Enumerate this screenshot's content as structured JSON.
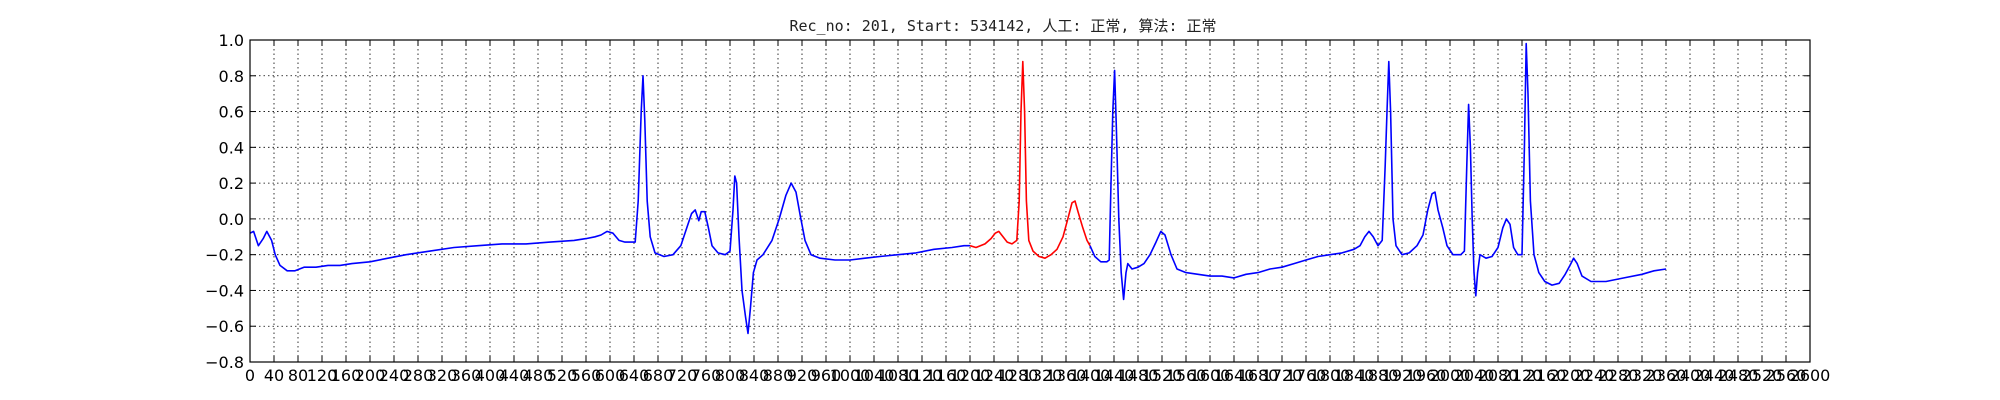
{
  "chart_data": {
    "type": "line",
    "title": "Rec_no: 201, Start: 534142, 人工: 正常, 算法: 正常",
    "xlabel": "",
    "ylabel": "",
    "xlim": [
      0,
      2600
    ],
    "ylim": [
      -0.8,
      1.0
    ],
    "grid": true,
    "x_ticks": [
      0,
      40,
      80,
      120,
      160,
      200,
      240,
      280,
      320,
      360,
      400,
      440,
      480,
      520,
      560,
      600,
      640,
      680,
      720,
      760,
      800,
      840,
      880,
      920,
      960,
      1000,
      1040,
      1080,
      1120,
      1160,
      1200,
      1240,
      1280,
      1320,
      1360,
      1400,
      1440,
      1480,
      1520,
      1560,
      1600,
      1640,
      1680,
      1720,
      1760,
      1800,
      1840,
      1880,
      1920,
      1960,
      2000,
      2040,
      2080,
      2120,
      2160,
      2200,
      2240,
      2280,
      2320,
      2360,
      2400,
      2440,
      2480,
      2520,
      2560,
      2600
    ],
    "x_tick_labels": [
      "0",
      "40",
      "80",
      "120",
      "160",
      "200",
      "240",
      "280",
      "320",
      "360",
      "400",
      "440",
      "480",
      "520",
      "560",
      "600",
      "640",
      "680",
      "720",
      "760",
      "800",
      "840",
      "880",
      "920",
      "960",
      "1000",
      "1040",
      "1080",
      "1120",
      "1160",
      "1200",
      "1240",
      "1280",
      "1320",
      "1360",
      "1400",
      "1440",
      "1480",
      "1520",
      "1560",
      "1600",
      "1640",
      "1680",
      "1720",
      "1760",
      "1800",
      "1840",
      "1880",
      "1920",
      "1960",
      "2000",
      "2040",
      "2080",
      "2120",
      "2160",
      "2200",
      "2240",
      "2280",
      "2320",
      "2360",
      "2400",
      "2440",
      "2480",
      "2520",
      "2560",
      "2600"
    ],
    "y_ticks": [
      -0.8,
      -0.6,
      -0.4,
      -0.2,
      0.0,
      0.2,
      0.4,
      0.6,
      0.8,
      1.0
    ],
    "y_tick_labels": [
      "−0.8",
      "−0.6",
      "−0.4",
      "−0.2",
      "0.0",
      "0.2",
      "0.4",
      "0.6",
      "0.8",
      "1.0"
    ],
    "series": [
      {
        "color": "#0000ff",
        "points": [
          [
            0,
            -0.08
          ],
          [
            6,
            -0.07
          ],
          [
            14,
            -0.15
          ],
          [
            22,
            -0.11
          ],
          [
            28,
            -0.07
          ],
          [
            36,
            -0.12
          ],
          [
            42,
            -0.2
          ],
          [
            50,
            -0.26
          ],
          [
            62,
            -0.29
          ],
          [
            75,
            -0.29
          ],
          [
            90,
            -0.27
          ],
          [
            110,
            -0.27
          ],
          [
            130,
            -0.26
          ],
          [
            150,
            -0.26
          ],
          [
            170,
            -0.25
          ],
          [
            200,
            -0.24
          ],
          [
            230,
            -0.22
          ],
          [
            260,
            -0.2
          ],
          [
            300,
            -0.18
          ],
          [
            340,
            -0.16
          ],
          [
            380,
            -0.15
          ],
          [
            420,
            -0.14
          ],
          [
            460,
            -0.14
          ],
          [
            500,
            -0.13
          ],
          [
            540,
            -0.12
          ],
          [
            560,
            -0.11
          ],
          [
            575,
            -0.1
          ],
          [
            585,
            -0.09
          ],
          [
            595,
            -0.07
          ],
          [
            605,
            -0.08
          ],
          [
            615,
            -0.12
          ],
          [
            625,
            -0.13
          ],
          [
            637,
            -0.13
          ],
          [
            642,
            -0.13
          ],
          [
            647,
            0.1
          ],
          [
            652,
            0.6
          ],
          [
            655,
            0.8
          ],
          [
            658,
            0.55
          ],
          [
            662,
            0.1
          ],
          [
            667,
            -0.1
          ],
          [
            675,
            -0.19
          ],
          [
            690,
            -0.21
          ],
          [
            705,
            -0.2
          ],
          [
            718,
            -0.15
          ],
          [
            728,
            -0.05
          ],
          [
            736,
            0.03
          ],
          [
            742,
            0.05
          ],
          [
            748,
            -0.01
          ],
          [
            752,
            0.04
          ],
          [
            758,
            0.04
          ],
          [
            764,
            -0.05
          ],
          [
            770,
            -0.15
          ],
          [
            780,
            -0.19
          ],
          [
            792,
            -0.2
          ],
          [
            800,
            -0.18
          ],
          [
            805,
            0.05
          ],
          [
            808,
            0.24
          ],
          [
            811,
            0.2
          ],
          [
            815,
            -0.1
          ],
          [
            820,
            -0.4
          ],
          [
            826,
            -0.55
          ],
          [
            830,
            -0.64
          ],
          [
            834,
            -0.5
          ],
          [
            839,
            -0.3
          ],
          [
            845,
            -0.23
          ],
          [
            855,
            -0.2
          ],
          [
            870,
            -0.12
          ],
          [
            882,
            0.0
          ],
          [
            893,
            0.13
          ],
          [
            902,
            0.2
          ],
          [
            910,
            0.15
          ],
          [
            917,
            0.02
          ],
          [
            925,
            -0.12
          ],
          [
            935,
            -0.2
          ],
          [
            950,
            -0.22
          ],
          [
            975,
            -0.23
          ],
          [
            1000,
            -0.23
          ],
          [
            1025,
            -0.22
          ],
          [
            1050,
            -0.21
          ],
          [
            1080,
            -0.2
          ],
          [
            1110,
            -0.19
          ],
          [
            1140,
            -0.17
          ],
          [
            1170,
            -0.16
          ],
          [
            1190,
            -0.15
          ],
          [
            1200,
            -0.15
          ]
        ]
      },
      {
        "color": "#ff0000",
        "points": [
          [
            1200,
            -0.15
          ],
          [
            1210,
            -0.16
          ],
          [
            1225,
            -0.14
          ],
          [
            1235,
            -0.11
          ],
          [
            1242,
            -0.08
          ],
          [
            1248,
            -0.07
          ],
          [
            1255,
            -0.1
          ],
          [
            1262,
            -0.13
          ],
          [
            1270,
            -0.14
          ],
          [
            1278,
            -0.12
          ],
          [
            1282,
            0.1
          ],
          [
            1285,
            0.6
          ],
          [
            1288,
            0.88
          ],
          [
            1291,
            0.6
          ],
          [
            1294,
            0.1
          ],
          [
            1298,
            -0.12
          ],
          [
            1305,
            -0.18
          ],
          [
            1315,
            -0.21
          ],
          [
            1325,
            -0.22
          ],
          [
            1335,
            -0.2
          ],
          [
            1345,
            -0.17
          ],
          [
            1355,
            -0.1
          ],
          [
            1363,
            0.0
          ],
          [
            1370,
            0.09
          ],
          [
            1375,
            0.1
          ],
          [
            1380,
            0.04
          ],
          [
            1388,
            -0.05
          ],
          [
            1395,
            -0.12
          ],
          [
            1400,
            -0.15
          ]
        ]
      },
      {
        "color": "#0000ff",
        "points": [
          [
            1400,
            -0.15
          ],
          [
            1408,
            -0.21
          ],
          [
            1418,
            -0.24
          ],
          [
            1428,
            -0.24
          ],
          [
            1432,
            -0.23
          ],
          [
            1435,
            0.2
          ],
          [
            1438,
            0.6
          ],
          [
            1441,
            0.83
          ],
          [
            1444,
            0.5
          ],
          [
            1448,
            0.0
          ],
          [
            1452,
            -0.3
          ],
          [
            1456,
            -0.45
          ],
          [
            1460,
            -0.3
          ],
          [
            1463,
            -0.25
          ],
          [
            1470,
            -0.28
          ],
          [
            1480,
            -0.27
          ],
          [
            1490,
            -0.25
          ],
          [
            1500,
            -0.2
          ],
          [
            1510,
            -0.13
          ],
          [
            1518,
            -0.07
          ],
          [
            1525,
            -0.09
          ],
          [
            1535,
            -0.2
          ],
          [
            1545,
            -0.28
          ],
          [
            1560,
            -0.3
          ],
          [
            1580,
            -0.31
          ],
          [
            1600,
            -0.32
          ],
          [
            1620,
            -0.32
          ],
          [
            1640,
            -0.33
          ],
          [
            1660,
            -0.31
          ],
          [
            1680,
            -0.3
          ],
          [
            1700,
            -0.28
          ],
          [
            1720,
            -0.27
          ],
          [
            1740,
            -0.25
          ],
          [
            1760,
            -0.23
          ],
          [
            1780,
            -0.21
          ],
          [
            1800,
            -0.2
          ],
          [
            1820,
            -0.19
          ],
          [
            1840,
            -0.17
          ],
          [
            1850,
            -0.15
          ],
          [
            1858,
            -0.1
          ],
          [
            1865,
            -0.07
          ],
          [
            1872,
            -0.1
          ],
          [
            1880,
            -0.15
          ],
          [
            1887,
            -0.12
          ],
          [
            1892,
            0.3
          ],
          [
            1895,
            0.6
          ],
          [
            1898,
            0.88
          ],
          [
            1901,
            0.6
          ],
          [
            1905,
            0.0
          ],
          [
            1910,
            -0.15
          ],
          [
            1920,
            -0.2
          ],
          [
            1932,
            -0.19
          ],
          [
            1945,
            -0.15
          ],
          [
            1955,
            -0.09
          ],
          [
            1963,
            0.05
          ],
          [
            1970,
            0.14
          ],
          [
            1975,
            0.15
          ],
          [
            1980,
            0.05
          ],
          [
            1988,
            -0.05
          ],
          [
            1995,
            -0.15
          ],
          [
            2005,
            -0.2
          ],
          [
            2018,
            -0.2
          ],
          [
            2024,
            -0.18
          ],
          [
            2028,
            0.3
          ],
          [
            2031,
            0.64
          ],
          [
            2034,
            0.4
          ],
          [
            2037,
            0.0
          ],
          [
            2040,
            -0.3
          ],
          [
            2043,
            -0.43
          ],
          [
            2046,
            -0.3
          ],
          [
            2050,
            -0.2
          ],
          [
            2060,
            -0.22
          ],
          [
            2070,
            -0.21
          ],
          [
            2080,
            -0.16
          ],
          [
            2088,
            -0.05
          ],
          [
            2094,
            0.0
          ],
          [
            2100,
            -0.03
          ],
          [
            2106,
            -0.16
          ],
          [
            2113,
            -0.2
          ],
          [
            2120,
            -0.2
          ],
          [
            2124,
            0.4
          ],
          [
            2127,
            0.98
          ],
          [
            2130,
            0.7
          ],
          [
            2134,
            0.1
          ],
          [
            2140,
            -0.2
          ],
          [
            2148,
            -0.3
          ],
          [
            2158,
            -0.35
          ],
          [
            2170,
            -0.37
          ],
          [
            2182,
            -0.36
          ],
          [
            2192,
            -0.31
          ],
          [
            2200,
            -0.26
          ],
          [
            2206,
            -0.22
          ],
          [
            2212,
            -0.25
          ],
          [
            2220,
            -0.32
          ],
          [
            2235,
            -0.35
          ],
          [
            2260,
            -0.35
          ],
          [
            2290,
            -0.33
          ],
          [
            2320,
            -0.31
          ],
          [
            2340,
            -0.29
          ],
          [
            2360,
            -0.28
          ]
        ]
      }
    ]
  }
}
